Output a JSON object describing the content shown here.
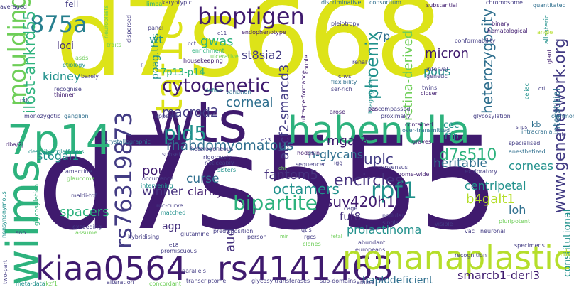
{
  "words": {
    "d7s668": "d7s668",
    "d7s555": "d7s555",
    "wts": "wts",
    "habenulla": "habenulla",
    "kiaa0564": "kiaa0564",
    "rs4141463": "rs4141463",
    "nonanaplastic": "nonanaplastic",
    "wilms": "wilms",
    "7p14": "7p14",
    "taf1c": "taf1c",
    "rs76319873": "rs76319873",
    "bioptigen": "bioptigen",
    "moulding": "moulding",
    "875a": "875a",
    "cytogenetic": "cytogenetic",
    "rpf1": "rpf1",
    "bipartite": "bipartite",
    "pld5": "pld5",
    "phoenix": "phoenix",
    "heterozygosity": "heterozygosity",
    "micron": "micron",
    "pous": "pous",
    "retina_derived": "retina-derived",
    "www_genenetwork_org": "www.genenetwork.org",
    "d7s510": "d7s510",
    "encircles": "encircles",
    "octamers": "octamers",
    "suv420h1": "suv420h1",
    "fantom5": "fantom5",
    "b4galt1": "b4galt1",
    "centripetal": "centripetal",
    "loh": "loh",
    "uplc": "uplc",
    "heritable": "heritable",
    "corneas": "corneas",
    "rhabdomyomatous": "rhabdomyomatous",
    "pouh": "pouh",
    "winner": "winner",
    "spacers": "spacers",
    "curse": "curse",
    "clarity": "clarity",
    "macrod2": "macrod2",
    "corneal": "corneal",
    "kidney": "kidney",
    "st6gal1": "st6gal1",
    "il6st_ankrd55": "il6st-ankrd55",
    "gwas": "gwas",
    "abcf2_smarcd3": "abcf2-smarcd3",
    "st8sia2": "st8sia2",
    "mgat3": "mgat3",
    "n_glycans": "n-glycans",
    "prolactinoma": "prolactinoma",
    "fut8": "fut8",
    "smarcb1_derl3": "smarcb1-derl3",
    "haplodeficient": "haplodeficient",
    "constitutional": "constitutional",
    "interstitial": "interstitial",
    "poag_this": "poag.this",
    "p7p13_p14": "7p13-p14",
    "wt": "wt",
    "p7p": "7p",
    "loci": "loci",
    "agp": "agp",
    "aud": "aud",
    "cec": "cec",
    "f1p": "f1p",
    "kb": "kb",
    "mb": "mb",
    "fell": "fell",
    "karyotypic": "karyotypic",
    "limbal": "limbal",
    "discriminative": "discriminative",
    "consortium": "consortium",
    "substantial": "substantial",
    "chromosome": "chromosome",
    "quantitated": "quantitated",
    "averaged": "averaged",
    "endophenotype": "endophenotype",
    "pleiotropy": "pleiotropy",
    "conformability": "conformability",
    "binary": "binary",
    "hematological": "hematological",
    "allosteric": "allosteric",
    "giant": "giant",
    "angle": "angle",
    "cct": "cct",
    "enrichment": "enrichment",
    "housekeeping": "housekeeping",
    "ulcerative": "ulcerative",
    "etiology": "etiology",
    "recognise": "recognise",
    "thinner": "thinner",
    "barely": "barely",
    "define": "define",
    "variation": "variation",
    "interval": "interval",
    "genetic": "genetic",
    "renal": "renal",
    "cnvs": "cnvs",
    "flexibility": "flexibility",
    "ser_rich": "ser-rich",
    "twins": "twins",
    "closer": "closer",
    "encompassed": "encompassed",
    "image_guided": "image-guided",
    "celiac": "celiac",
    "monozygotic": "monozygotic",
    "ganglion": "ganglion",
    "appears": "appears",
    "ultra_performance": "ultra-performance",
    "couple": "couple",
    "arose": "arose",
    "pas": "pas",
    "proximally": "proximally",
    "glycosylation": "glycosylation",
    "common": "common",
    "contained": "contained",
    "over_transmitted": "over-transmitted",
    "intracranial": "intracranial",
    "crystallographic": "crystallographic",
    "graves": "graves",
    "specialised": "specialised",
    "anesthetized": "anesthetized",
    "describing": "describing",
    "platforms": "platforms",
    "dba_2j": "dba/2j",
    "heterogeneous": "heterogeneous",
    "subset": "subset",
    "hodgkin": "hodgkin",
    "igg": "igg",
    "consensus": "consensus",
    "genome_wide": "genome-wide",
    "exploratory": "exploratory",
    "occurrence": "occurrence",
    "rigorously": "rigorously",
    "noticeably": "noticeably",
    "sequencer": "sequencer",
    "sisters": "sisters",
    "amacrine": "amacrine",
    "glaucoma": "glaucoma",
    "intervening": "intervening",
    "roc_curve": "roc-curve",
    "matched": "matched",
    "maldi_tof": "maldi-tof",
    "nonsynonymous": "nonsynonymous",
    "exceeding": "exceeding",
    "assume": "assume",
    "cage": "cage",
    "nodular": "nodular",
    "single": "single",
    "visible": "visible",
    "pluripotent": "pluripotent",
    "neuronal": "neuronal",
    "vac": "vac",
    "hybridising": "hybridising",
    "glutamine": "glutamine",
    "predisposition": "predisposition",
    "person": "person",
    "qtls": "qtls",
    "rgcs": "rgcs",
    "clones": "clones",
    "abundant": "abundant",
    "europeans": "europeans",
    "recognition": "recognition",
    "specimens": "specimens",
    "promiscuous": "promiscuous",
    "parallels": "parallels",
    "alteration": "alteration",
    "transcriptome": "transcriptome",
    "concordant": "concordant",
    "glycosyltransferases": "glycosyltransferases",
    "sub_domains": "sub-domains",
    "amino": "amino",
    "meta_data": "meta-data",
    "ikzf1": "ikzf1",
    "two_part": "two-part",
    "snp": "snp",
    "prl": "prl",
    "e11": "e11",
    "e13": "e13",
    "e18": "e18",
    "fc": "fc",
    "snps": "snps",
    "hits": "hits",
    "qtl": "qtl",
    "traits": "traits",
    "panel": "panel",
    "dispersed": "dispersed",
    "neuroblasts": "neuroblasts",
    "asds": "asds",
    "fetal": "fetal",
    "chr": "chr",
    "mir": "mir"
  }
}
